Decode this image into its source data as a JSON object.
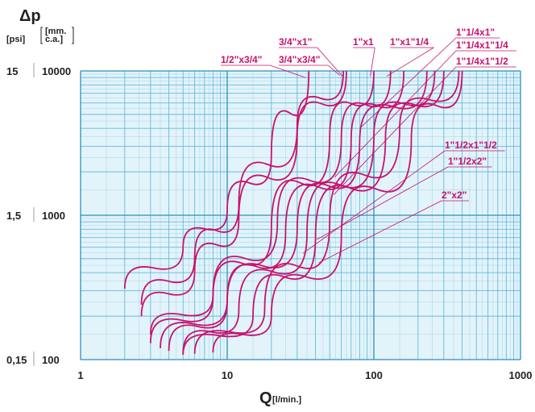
{
  "chart_data": {
    "type": "line",
    "x_scale": "log",
    "y_scale": "log",
    "xlim": [
      1,
      1000
    ],
    "ylim": [
      100,
      10000
    ],
    "x_ticks": [
      "1",
      "10",
      "100",
      "1000"
    ],
    "y_ticks_mm": [
      "100",
      "1000",
      "10000"
    ],
    "y_ticks_psi": [
      "0,15",
      "1,5",
      "15"
    ],
    "xlabel_main": "Q",
    "xlabel_unit": "[l/min.]",
    "ylabel_main": "Δp",
    "ylabel_unit_psi": "[psi]",
    "ylabel_unit_mm": "[mm.\nc.a.]",
    "grid": true,
    "grid_color": "#5ab4dc",
    "background_color": "#e2f3fa",
    "curve_color": "#c8126e",
    "series": [
      {
        "name": "1/2\"x3/4\"",
        "points": [
          [
            2,
            310
          ],
          [
            5,
            600
          ],
          [
            10,
            1080
          ],
          [
            20,
            2600
          ],
          [
            36,
            10000
          ]
        ]
      },
      {
        "name": "3/4\"x3/4\"",
        "points": [
          [
            2.6,
            240
          ],
          [
            6,
            510
          ],
          [
            12,
            1200
          ],
          [
            30,
            4200
          ],
          [
            62,
            10000
          ]
        ]
      },
      {
        "name": "3/4\"x1\"",
        "points": [
          [
            2.6,
            200
          ],
          [
            6,
            410
          ],
          [
            12,
            950
          ],
          [
            30,
            3500
          ],
          [
            65,
            10000
          ]
        ]
      },
      {
        "name": "1\"x1",
        "points": [
          [
            3,
            130
          ],
          [
            8,
            270
          ],
          [
            20,
            800
          ],
          [
            50,
            3500
          ],
          [
            100,
            10000
          ]
        ]
      },
      {
        "name": "1\"x1\"1/4",
        "points": [
          [
            3,
            150
          ],
          [
            8,
            280
          ],
          [
            22,
            900
          ],
          [
            60,
            3400
          ],
          [
            130,
            10000
          ]
        ]
      },
      {
        "name": "1\"1/4x1\"",
        "points": [
          [
            3.5,
            120
          ],
          [
            10,
            260
          ],
          [
            25,
            750
          ],
          [
            70,
            3300
          ],
          [
            160,
            10000
          ]
        ]
      },
      {
        "name": "1\"1/4x1\"1/4",
        "points": [
          [
            4,
            115
          ],
          [
            10,
            250
          ],
          [
            30,
            800
          ],
          [
            80,
            3200
          ],
          [
            230,
            10000
          ]
        ]
      },
      {
        "name": "1\"1/4x1\"1/2",
        "points": [
          [
            5,
            110
          ],
          [
            12,
            220
          ],
          [
            35,
            750
          ],
          [
            100,
            3500
          ],
          [
            260,
            10000
          ]
        ]
      },
      {
        "name": "1\"1/2x1\"1/2",
        "points": [
          [
            5,
            108
          ],
          [
            15,
            200
          ],
          [
            40,
            700
          ],
          [
            120,
            3400
          ],
          [
            300,
            10000
          ]
        ]
      },
      {
        "name": "1\"1/2x2\"",
        "points": [
          [
            6,
            110
          ],
          [
            18,
            220
          ],
          [
            50,
            900
          ],
          [
            150,
            4000
          ],
          [
            380,
            10000
          ]
        ]
      },
      {
        "name": "2\"x2\"",
        "points": [
          [
            8,
            112
          ],
          [
            20,
            200
          ],
          [
            60,
            700
          ],
          [
            180,
            3300
          ],
          [
            400,
            10000
          ]
        ]
      }
    ],
    "series_labels": [
      "1/2\"x3/4\"",
      "3/4\"x3/4\"",
      "3/4\"x1\"",
      "1\"x1",
      "1\"x1\"1/4",
      "1\"1/4x1\"",
      "1\"1/4x1\"1/4",
      "1\"1/4x1\"1/2",
      "1\"1/2x1\"1/2",
      "1\"1/2x2\"",
      "2\"x2\""
    ]
  }
}
